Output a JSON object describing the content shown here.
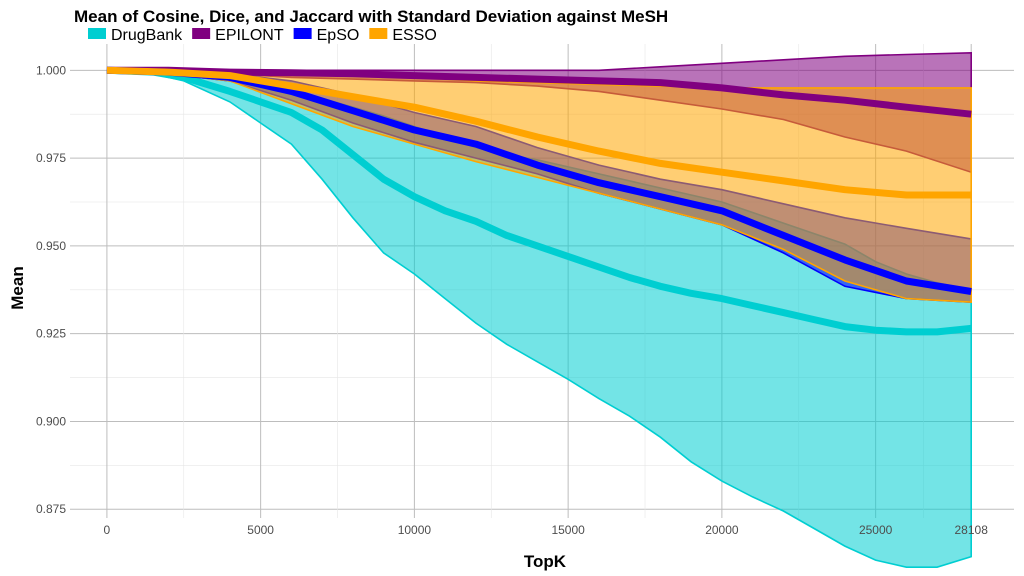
{
  "chart_data": {
    "type": "area",
    "title": "Mean of Cosine, Dice, and Jaccard with Standard Deviation against MeSH",
    "xlabel": "TopK",
    "ylabel": "Mean",
    "xlim": [
      0,
      28108
    ],
    "ylim": [
      0.8725,
      1.0075
    ],
    "x_ticks": [
      0,
      5000,
      10000,
      15000,
      20000,
      25000,
      28108
    ],
    "x_tick_labels": [
      "0",
      "5000",
      "10000",
      "15000",
      "20000",
      "25000",
      "28108"
    ],
    "y_ticks": [
      0.875,
      0.9,
      0.925,
      0.95,
      0.975,
      1.0
    ],
    "y_tick_labels": [
      "0.875",
      "0.900",
      "0.925",
      "0.950",
      "0.975",
      "1.000"
    ],
    "grid": true,
    "legend_position": "top-left",
    "series": [
      {
        "name": "DrugBank",
        "color": "#00CED1",
        "x": [
          0,
          1500,
          2500,
          4000,
          5000,
          6000,
          7000,
          8000,
          9000,
          10000,
          11000,
          12000,
          13000,
          14000,
          15000,
          16000,
          17000,
          18000,
          19000,
          20000,
          21000,
          22000,
          23000,
          24000,
          25000,
          26000,
          27000,
          28108
        ],
        "mean": [
          1.0,
          0.9995,
          0.998,
          0.994,
          0.991,
          0.988,
          0.983,
          0.976,
          0.969,
          0.964,
          0.96,
          0.957,
          0.953,
          0.95,
          0.947,
          0.944,
          0.941,
          0.9385,
          0.9365,
          0.935,
          0.933,
          0.931,
          0.929,
          0.927,
          0.926,
          0.9255,
          0.9255,
          0.9265
        ],
        "upper": [
          1.0,
          1.0,
          0.999,
          0.998,
          0.9965,
          0.9945,
          0.992,
          0.9895,
          0.987,
          0.984,
          0.981,
          0.978,
          0.976,
          0.9745,
          0.9725,
          0.9705,
          0.9685,
          0.9665,
          0.9645,
          0.9625,
          0.9595,
          0.9565,
          0.9535,
          0.9505,
          0.9455,
          0.942,
          0.9395,
          0.9375
        ],
        "lower": [
          1.0,
          0.999,
          0.997,
          0.991,
          0.985,
          0.979,
          0.969,
          0.958,
          0.948,
          0.942,
          0.935,
          0.928,
          0.922,
          0.917,
          0.912,
          0.9065,
          0.9015,
          0.8955,
          0.8885,
          0.883,
          0.8785,
          0.8745,
          0.8695,
          0.8645,
          0.8605,
          0.8585,
          0.8585,
          0.8615
        ]
      },
      {
        "name": "EPILONT",
        "color": "#800080",
        "x": [
          0,
          2000,
          4000,
          6000,
          8000,
          10000,
          12000,
          14000,
          16000,
          18000,
          20000,
          22000,
          24000,
          26000,
          28108
        ],
        "mean": [
          1.0,
          1.0,
          0.9995,
          0.9993,
          0.999,
          0.9985,
          0.998,
          0.9975,
          0.997,
          0.9965,
          0.995,
          0.993,
          0.9915,
          0.9895,
          0.9875
        ],
        "upper": [
          1.0,
          1.0,
          1.0,
          1.0,
          1.0,
          1.0,
          1.0,
          1.0,
          1.0,
          1.001,
          1.002,
          1.003,
          1.004,
          1.0045,
          1.005
        ],
        "lower": [
          1.0,
          1.0,
          0.999,
          0.998,
          0.9975,
          0.997,
          0.9965,
          0.9955,
          0.994,
          0.9915,
          0.989,
          0.986,
          0.981,
          0.977,
          0.971
        ]
      },
      {
        "name": "EpSO",
        "color": "#0000FF",
        "x": [
          0,
          2000,
          4000,
          6000,
          8000,
          10000,
          12000,
          14000,
          16000,
          18000,
          20000,
          22000,
          24000,
          26000,
          28108
        ],
        "mean": [
          1.0,
          0.9995,
          0.998,
          0.994,
          0.9885,
          0.983,
          0.979,
          0.973,
          0.968,
          0.964,
          0.96,
          0.953,
          0.946,
          0.94,
          0.937
        ],
        "upper": [
          1.0,
          1.0,
          0.999,
          0.997,
          0.993,
          0.988,
          0.984,
          0.978,
          0.973,
          0.969,
          0.966,
          0.962,
          0.958,
          0.955,
          0.952
        ],
        "lower": [
          1.0,
          0.999,
          0.997,
          0.9915,
          0.985,
          0.9795,
          0.975,
          0.9705,
          0.965,
          0.9605,
          0.956,
          0.948,
          0.9385,
          0.935,
          0.934
        ]
      },
      {
        "name": "ESSO",
        "color": "#FFA500",
        "x": [
          0,
          2000,
          4000,
          6000,
          8000,
          10000,
          12000,
          14000,
          16000,
          18000,
          20000,
          22000,
          24000,
          26000,
          28108
        ],
        "mean": [
          1.0,
          0.9995,
          0.9985,
          0.9955,
          0.9925,
          0.9895,
          0.9855,
          0.981,
          0.977,
          0.9735,
          0.971,
          0.9685,
          0.966,
          0.9645,
          0.9645
        ],
        "upper": [
          1.0,
          1.0,
          1.0,
          0.9995,
          0.999,
          0.998,
          0.997,
          0.9965,
          0.996,
          0.9955,
          0.995,
          0.995,
          0.995,
          0.995,
          0.995
        ],
        "lower": [
          1.0,
          0.999,
          0.997,
          0.9905,
          0.984,
          0.979,
          0.974,
          0.9695,
          0.965,
          0.9605,
          0.956,
          0.949,
          0.94,
          0.935,
          0.934
        ]
      }
    ]
  }
}
